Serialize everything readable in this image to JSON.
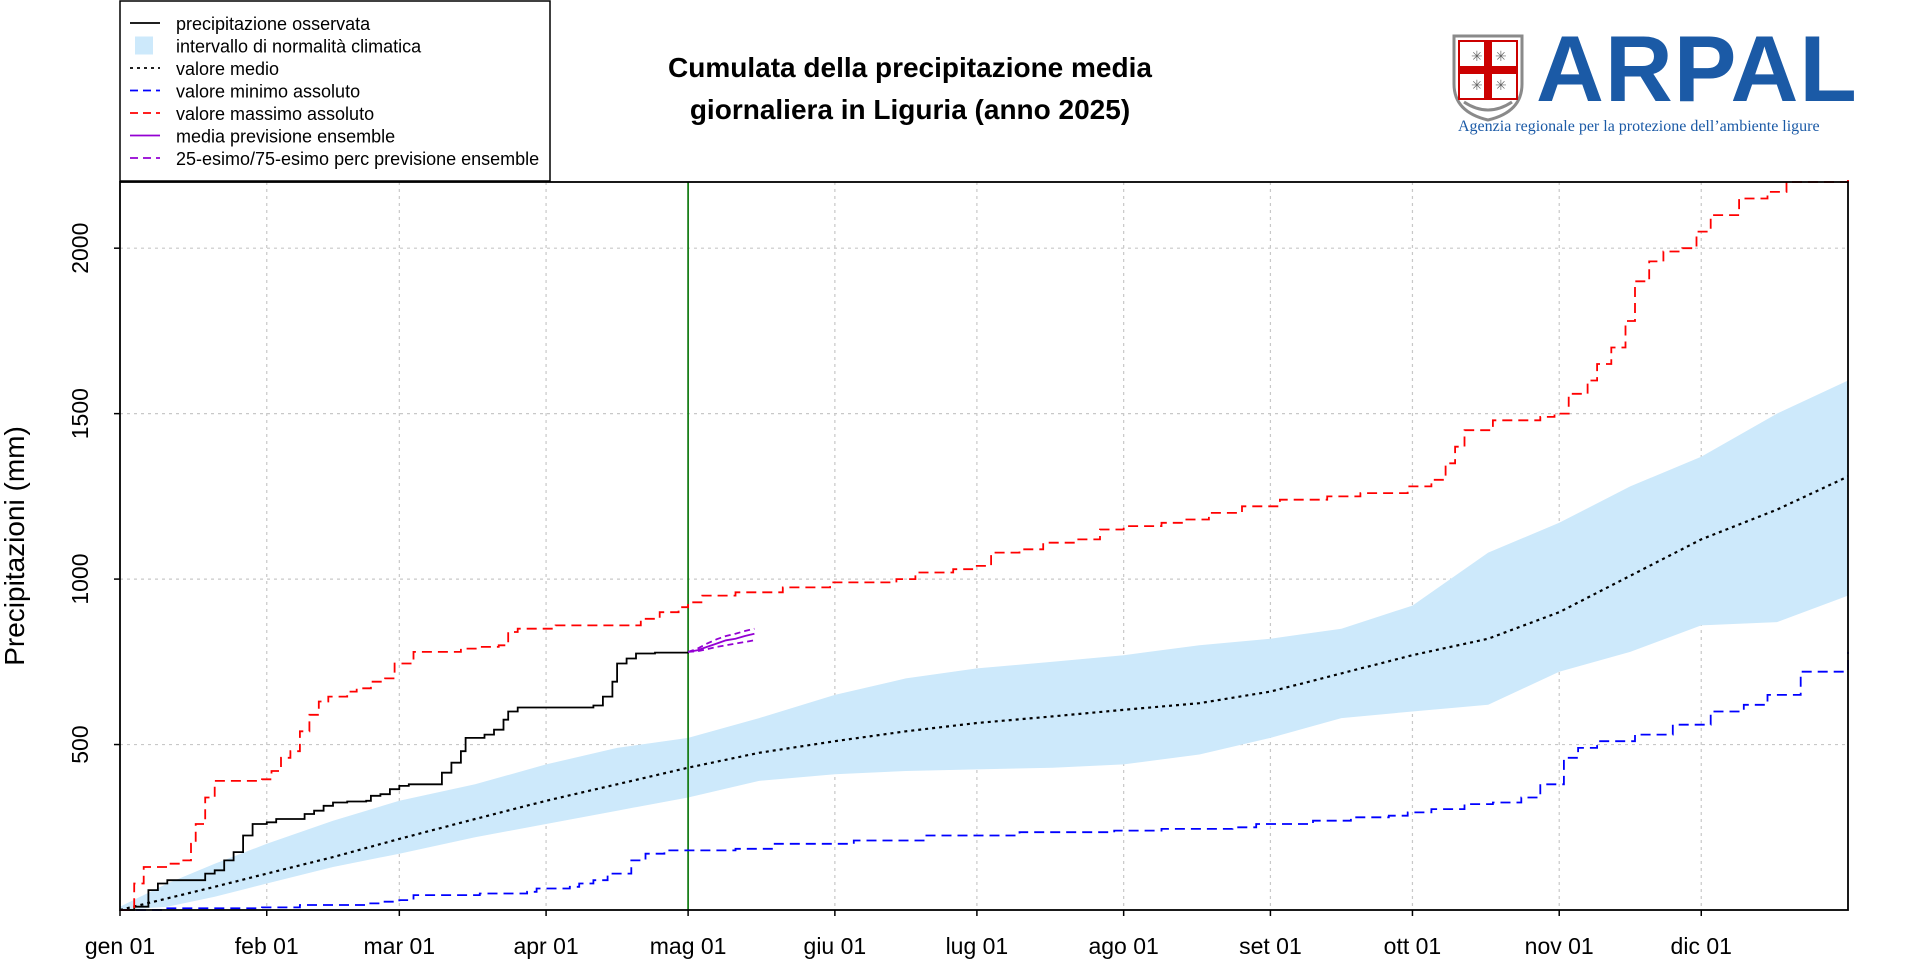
{
  "chart_data": {
    "type": "line",
    "title_lines": [
      "Cumulata della precipitazione media",
      "giornaliera in Liguria (anno 2025)"
    ],
    "ylabel": "Precipitazioni (mm)",
    "xlim": [
      0,
      365
    ],
    "ylim": [
      0,
      2200
    ],
    "yticks": [
      500,
      1000,
      1500,
      2000
    ],
    "xticks": [
      {
        "day": 0,
        "label": "gen 01"
      },
      {
        "day": 31,
        "label": "feb 01"
      },
      {
        "day": 59,
        "label": "mar 01"
      },
      {
        "day": 90,
        "label": "apr 01"
      },
      {
        "day": 120,
        "label": "mag 01"
      },
      {
        "day": 151,
        "label": "giu 01"
      },
      {
        "day": 181,
        "label": "lug 01"
      },
      {
        "day": 212,
        "label": "ago 01"
      },
      {
        "day": 243,
        "label": "set 01"
      },
      {
        "day": 273,
        "label": "ott 01"
      },
      {
        "day": 304,
        "label": "nov 01"
      },
      {
        "day": 334,
        "label": "dic 01"
      }
    ],
    "grid": true,
    "current_day_marker": 120,
    "legend": [
      {
        "label": "precipitazione osservata",
        "style": "line",
        "color": "#000000"
      },
      {
        "label": "intervallo di normalità climatica",
        "style": "box",
        "color": "#cde9fb"
      },
      {
        "label": "valore medio",
        "style": "dotted",
        "color": "#000000"
      },
      {
        "label": "valore minimo assoluto",
        "style": "dashed",
        "color": "#0000ff"
      },
      {
        "label": "valore massimo assoluto",
        "style": "dashed",
        "color": "#ff0000"
      },
      {
        "label": "media previsione ensemble",
        "style": "line",
        "color": "#9400d3"
      },
      {
        "label": "25-esimo/75-esimo perc previsione ensemble",
        "style": "dashed",
        "color": "#9400d3"
      }
    ],
    "series": [
      {
        "name": "precipitazione osservata",
        "color": "#000000",
        "dash": "",
        "points": [
          [
            0,
            0
          ],
          [
            3,
            10
          ],
          [
            6,
            60
          ],
          [
            8,
            80
          ],
          [
            10,
            90
          ],
          [
            17,
            90
          ],
          [
            18,
            110
          ],
          [
            20,
            120
          ],
          [
            22,
            150
          ],
          [
            24,
            175
          ],
          [
            26,
            225
          ],
          [
            28,
            260
          ],
          [
            31,
            265
          ],
          [
            33,
            275
          ],
          [
            37,
            275
          ],
          [
            39,
            290
          ],
          [
            41,
            300
          ],
          [
            43,
            315
          ],
          [
            45,
            325
          ],
          [
            48,
            328
          ],
          [
            52,
            330
          ],
          [
            53,
            345
          ],
          [
            55,
            350
          ],
          [
            57,
            365
          ],
          [
            59,
            375
          ],
          [
            61,
            380
          ],
          [
            66,
            380
          ],
          [
            68,
            415
          ],
          [
            70,
            445
          ],
          [
            72,
            480
          ],
          [
            73,
            520
          ],
          [
            77,
            530
          ],
          [
            79,
            545
          ],
          [
            81,
            575
          ],
          [
            82,
            600
          ],
          [
            84,
            612
          ],
          [
            89,
            612
          ],
          [
            100,
            618
          ],
          [
            102,
            645
          ],
          [
            104,
            690
          ],
          [
            105,
            745
          ],
          [
            107,
            760
          ],
          [
            109,
            775
          ],
          [
            113,
            778
          ],
          [
            120,
            780
          ]
        ]
      },
      {
        "name": "valore medio",
        "color": "#000000",
        "dash": "3,4",
        "points": [
          [
            0,
            0
          ],
          [
            10,
            35
          ],
          [
            20,
            70
          ],
          [
            31,
            110
          ],
          [
            45,
            160
          ],
          [
            59,
            215
          ],
          [
            75,
            275
          ],
          [
            90,
            330
          ],
          [
            105,
            380
          ],
          [
            120,
            430
          ],
          [
            135,
            475
          ],
          [
            151,
            510
          ],
          [
            166,
            540
          ],
          [
            181,
            565
          ],
          [
            197,
            585
          ],
          [
            212,
            605
          ],
          [
            228,
            625
          ],
          [
            243,
            660
          ],
          [
            258,
            715
          ],
          [
            273,
            770
          ],
          [
            289,
            820
          ],
          [
            304,
            900
          ],
          [
            319,
            1010
          ],
          [
            334,
            1120
          ],
          [
            350,
            1210
          ],
          [
            365,
            1310
          ]
        ]
      },
      {
        "name": "valore minimo assoluto",
        "color": "#0000ff",
        "dash": "10,6",
        "points": [
          [
            0,
            0
          ],
          [
            10,
            5
          ],
          [
            30,
            8
          ],
          [
            38,
            15
          ],
          [
            52,
            20
          ],
          [
            55,
            25
          ],
          [
            59,
            30
          ],
          [
            62,
            45
          ],
          [
            76,
            50
          ],
          [
            86,
            55
          ],
          [
            88,
            65
          ],
          [
            95,
            70
          ],
          [
            97,
            80
          ],
          [
            100,
            90
          ],
          [
            103,
            110
          ],
          [
            108,
            150
          ],
          [
            111,
            170
          ],
          [
            115,
            180
          ],
          [
            130,
            185
          ],
          [
            138,
            200
          ],
          [
            155,
            210
          ],
          [
            170,
            225
          ],
          [
            190,
            235
          ],
          [
            210,
            240
          ],
          [
            220,
            245
          ],
          [
            235,
            250
          ],
          [
            240,
            260
          ],
          [
            252,
            270
          ],
          [
            260,
            280
          ],
          [
            268,
            285
          ],
          [
            272,
            295
          ],
          [
            277,
            305
          ],
          [
            284,
            320
          ],
          [
            290,
            325
          ],
          [
            296,
            340
          ],
          [
            300,
            380
          ],
          [
            305,
            460
          ],
          [
            308,
            490
          ],
          [
            312,
            510
          ],
          [
            320,
            530
          ],
          [
            328,
            560
          ],
          [
            336,
            600
          ],
          [
            343,
            620
          ],
          [
            348,
            650
          ],
          [
            355,
            720
          ],
          [
            365,
            780
          ]
        ]
      },
      {
        "name": "valore massimo assoluto",
        "color": "#ff0000",
        "dash": "10,6",
        "points": [
          [
            0,
            0
          ],
          [
            3,
            80
          ],
          [
            5,
            130
          ],
          [
            10,
            140
          ],
          [
            13,
            150
          ],
          [
            15,
            200
          ],
          [
            16,
            260
          ],
          [
            18,
            340
          ],
          [
            20,
            390
          ],
          [
            30,
            395
          ],
          [
            32,
            420
          ],
          [
            34,
            460
          ],
          [
            36,
            480
          ],
          [
            38,
            540
          ],
          [
            40,
            590
          ],
          [
            42,
            630
          ],
          [
            44,
            645
          ],
          [
            48,
            660
          ],
          [
            50,
            670
          ],
          [
            53,
            690
          ],
          [
            56,
            700
          ],
          [
            58,
            745
          ],
          [
            62,
            780
          ],
          [
            72,
            790
          ],
          [
            76,
            795
          ],
          [
            80,
            800
          ],
          [
            82,
            840
          ],
          [
            84,
            850
          ],
          [
            92,
            860
          ],
          [
            106,
            860
          ],
          [
            110,
            880
          ],
          [
            114,
            900
          ],
          [
            118,
            915
          ],
          [
            120,
            930
          ],
          [
            123,
            950
          ],
          [
            130,
            960
          ],
          [
            140,
            975
          ],
          [
            150,
            990
          ],
          [
            164,
            1000
          ],
          [
            168,
            1020
          ],
          [
            176,
            1030
          ],
          [
            180,
            1040
          ],
          [
            184,
            1080
          ],
          [
            190,
            1090
          ],
          [
            195,
            1110
          ],
          [
            202,
            1120
          ],
          [
            207,
            1150
          ],
          [
            212,
            1160
          ],
          [
            220,
            1170
          ],
          [
            225,
            1180
          ],
          [
            230,
            1200
          ],
          [
            237,
            1220
          ],
          [
            245,
            1240
          ],
          [
            255,
            1250
          ],
          [
            262,
            1260
          ],
          [
            272,
            1280
          ],
          [
            277,
            1300
          ],
          [
            280,
            1350
          ],
          [
            282,
            1400
          ],
          [
            284,
            1450
          ],
          [
            290,
            1480
          ],
          [
            300,
            1490
          ],
          [
            303,
            1500
          ],
          [
            306,
            1560
          ],
          [
            310,
            1600
          ],
          [
            312,
            1650
          ],
          [
            315,
            1700
          ],
          [
            318,
            1780
          ],
          [
            320,
            1900
          ],
          [
            323,
            1960
          ],
          [
            326,
            1990
          ],
          [
            330,
            2000
          ],
          [
            333,
            2050
          ],
          [
            336,
            2100
          ],
          [
            342,
            2150
          ],
          [
            348,
            2170
          ],
          [
            352,
            2200
          ],
          [
            365,
            2210
          ]
        ]
      },
      {
        "name": "media previsione ensemble",
        "color": "#9400d3",
        "dash": "",
        "points": [
          [
            120,
            780
          ],
          [
            122,
            785
          ],
          [
            124,
            795
          ],
          [
            126,
            805
          ],
          [
            128,
            815
          ],
          [
            130,
            820
          ],
          [
            132,
            828
          ],
          [
            134,
            835
          ]
        ]
      },
      {
        "name": "25-esimo/75-esimo perc previsione ensemble",
        "color": "#9400d3",
        "dash": "6,4",
        "points": [
          [
            120,
            780
          ],
          [
            122,
            790
          ],
          [
            124,
            805
          ],
          [
            126,
            818
          ],
          [
            128,
            828
          ],
          [
            130,
            835
          ],
          [
            132,
            843
          ],
          [
            134,
            850
          ]
        ]
      },
      {
        "name": "25-esimo/75-esimo perc previsione ensemble",
        "color": "#9400d3",
        "dash": "6,4",
        "points": [
          [
            120,
            780
          ],
          [
            122,
            782
          ],
          [
            124,
            788
          ],
          [
            126,
            795
          ],
          [
            128,
            800
          ],
          [
            130,
            805
          ],
          [
            132,
            810
          ],
          [
            134,
            815
          ]
        ]
      }
    ],
    "band": {
      "name": "intervallo di normalità climatica",
      "color": "#cde9fb",
      "upper": [
        [
          0,
          10
        ],
        [
          10,
          80
        ],
        [
          20,
          140
        ],
        [
          31,
          200
        ],
        [
          45,
          270
        ],
        [
          59,
          330
        ],
        [
          75,
          380
        ],
        [
          90,
          440
        ],
        [
          105,
          490
        ],
        [
          120,
          520
        ],
        [
          135,
          580
        ],
        [
          151,
          650
        ],
        [
          166,
          700
        ],
        [
          181,
          730
        ],
        [
          197,
          750
        ],
        [
          212,
          770
        ],
        [
          228,
          800
        ],
        [
          243,
          820
        ],
        [
          258,
          850
        ],
        [
          273,
          920
        ],
        [
          289,
          1080
        ],
        [
          304,
          1170
        ],
        [
          319,
          1280
        ],
        [
          334,
          1370
        ],
        [
          350,
          1500
        ],
        [
          365,
          1600
        ]
      ],
      "lower": [
        [
          0,
          0
        ],
        [
          10,
          10
        ],
        [
          20,
          40
        ],
        [
          31,
          80
        ],
        [
          45,
          130
        ],
        [
          59,
          170
        ],
        [
          75,
          220
        ],
        [
          90,
          260
        ],
        [
          105,
          300
        ],
        [
          120,
          340
        ],
        [
          135,
          390
        ],
        [
          151,
          410
        ],
        [
          166,
          420
        ],
        [
          181,
          425
        ],
        [
          197,
          430
        ],
        [
          212,
          440
        ],
        [
          228,
          470
        ],
        [
          243,
          520
        ],
        [
          258,
          580
        ],
        [
          273,
          600
        ],
        [
          289,
          620
        ],
        [
          304,
          720
        ],
        [
          319,
          780
        ],
        [
          334,
          860
        ],
        [
          350,
          870
        ],
        [
          365,
          950
        ]
      ]
    }
  },
  "logo": {
    "text": "ARPAL",
    "subtitle": "Agenzia regionale per la protezione dell’ambiente ligure"
  }
}
